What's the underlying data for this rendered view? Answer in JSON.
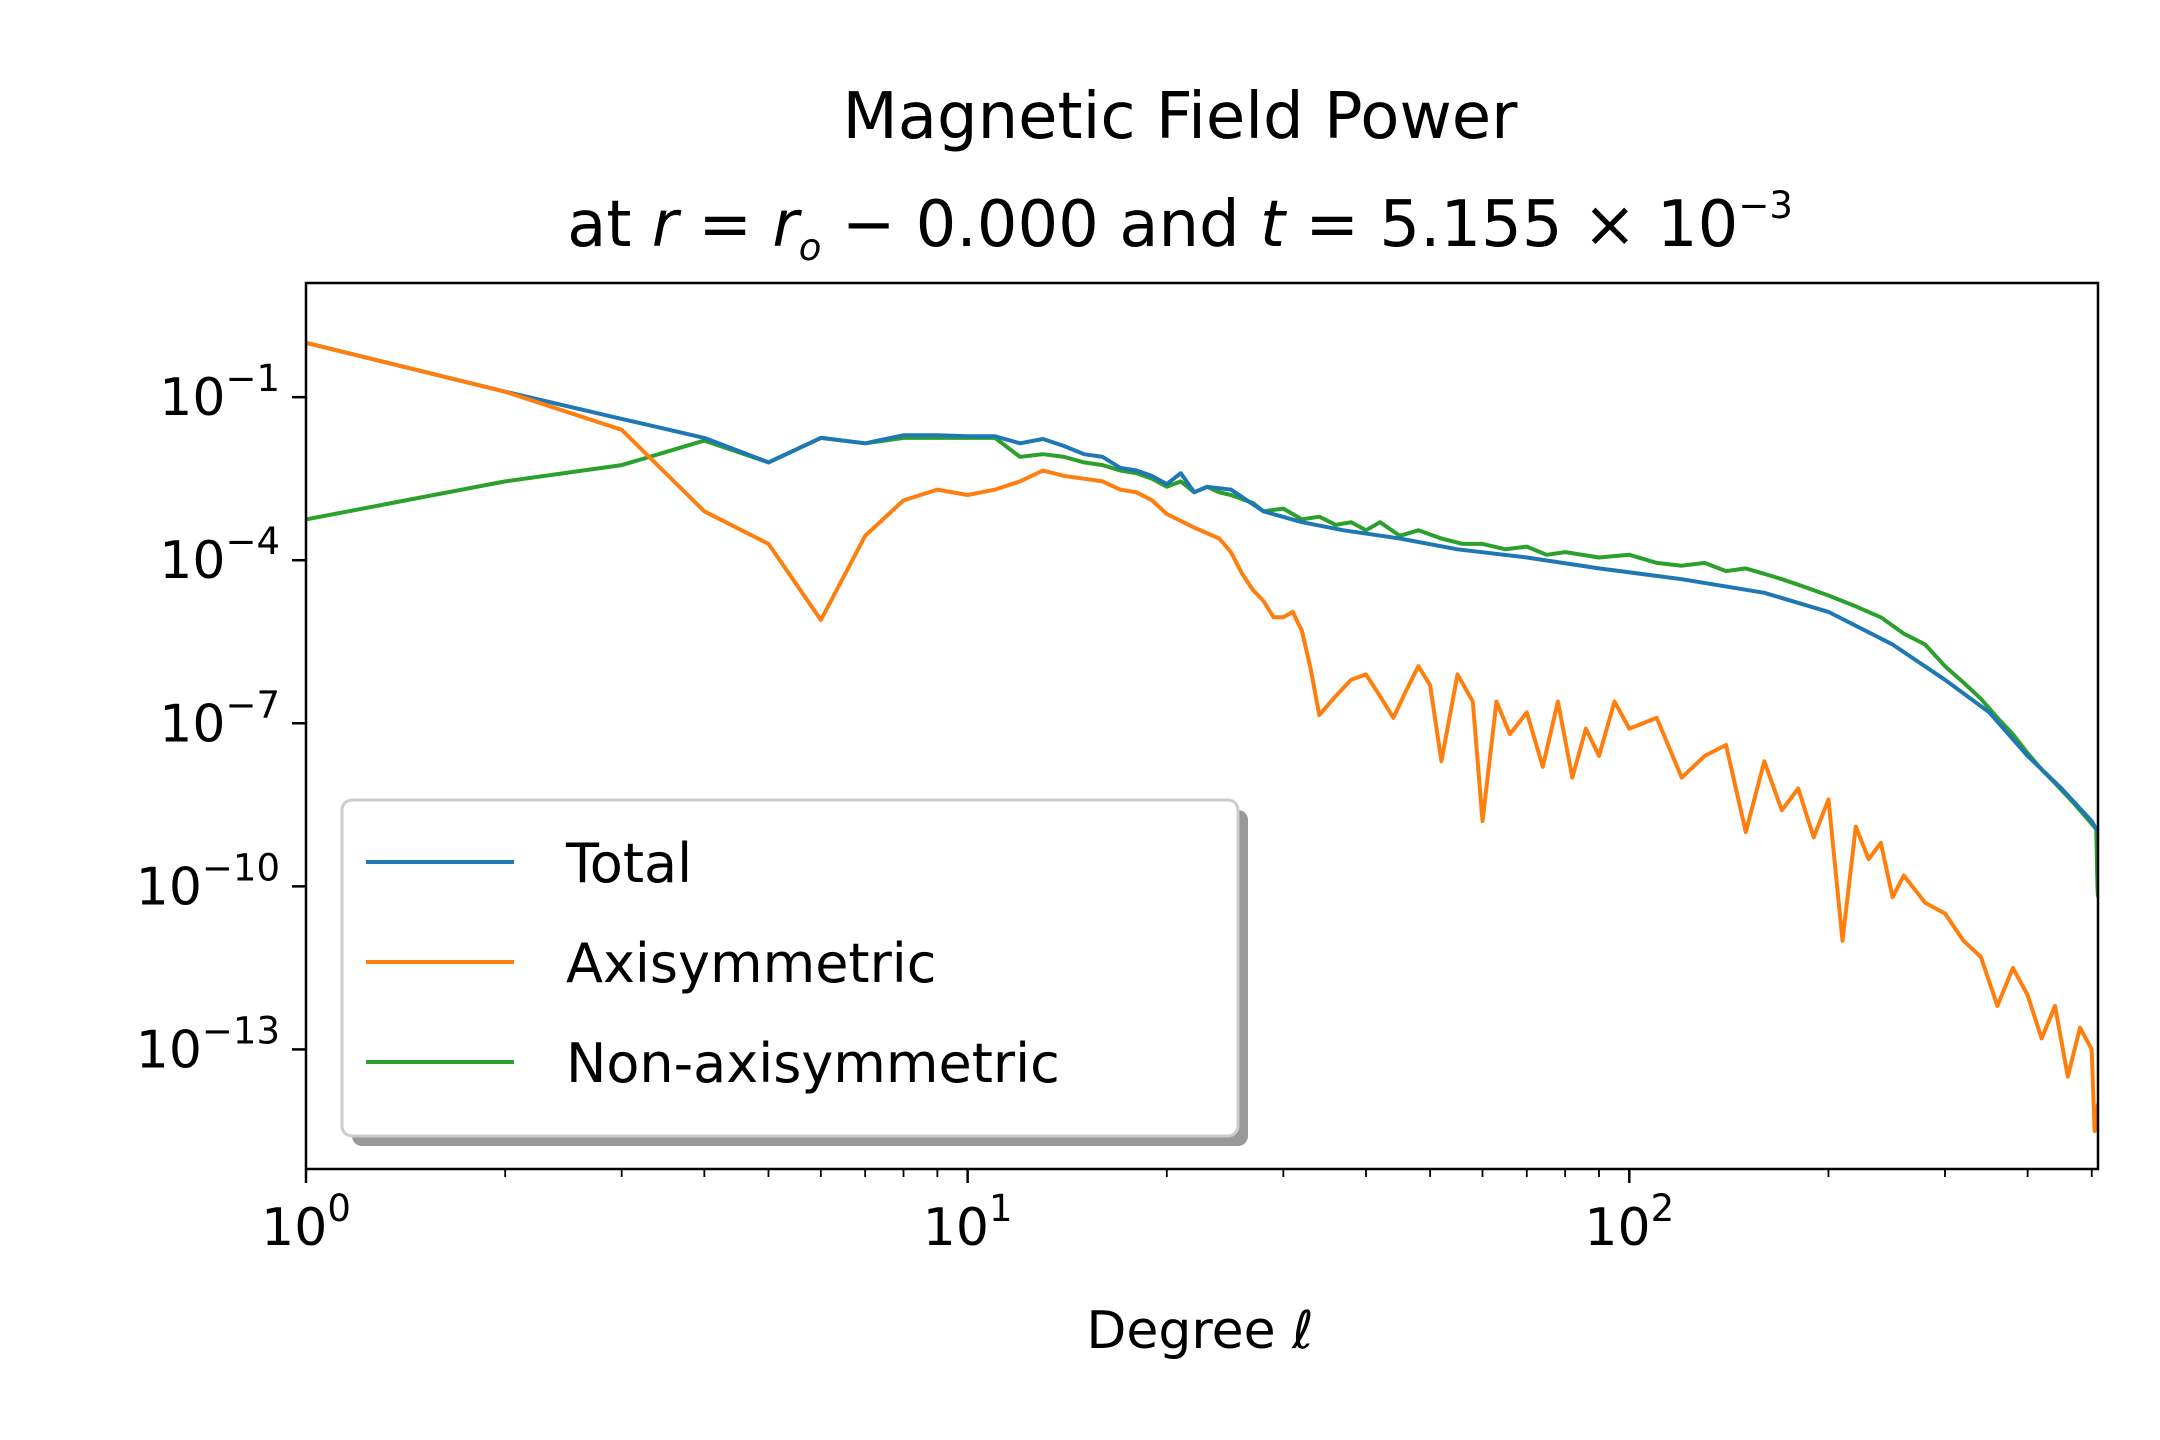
{
  "chart_data": {
    "type": "line",
    "title": "Magnetic Field Power",
    "subtitle": "at r = r_o − 0.000 and t = 5.155 × 10^−3",
    "subtitle_parts": {
      "prefix": "at ",
      "r": "r",
      "eq1": " = ",
      "ro_base": "r",
      "ro_sub": "o",
      "minus": " −  ",
      "r_value": "0.000",
      "and": " and ",
      "t": "t",
      "eq2": " = ",
      "t_value": "5.155 × 10",
      "t_exponent": "−3"
    },
    "xlabel": "Degree ℓ",
    "ylabel": "",
    "xscale": "log",
    "yscale": "log",
    "xlim": [
      1,
      511
    ],
    "ylim_log10": [
      -15.2,
      1.1
    ],
    "grid": false,
    "legend_position": "lower-left",
    "x_ticks": [
      {
        "base": "10",
        "exp": "0",
        "value": 1
      },
      {
        "base": "10",
        "exp": "1",
        "value": 10
      },
      {
        "base": "10",
        "exp": "2",
        "value": 100
      }
    ],
    "y_ticks": [
      {
        "base": "10",
        "exp": "−1",
        "value": -1
      },
      {
        "base": "10",
        "exp": "−4",
        "value": -4
      },
      {
        "base": "10",
        "exp": "−7",
        "value": -7
      },
      {
        "base": "10",
        "exp": "−10",
        "value": -10
      },
      {
        "base": "10",
        "exp": "−13",
        "value": -13
      }
    ],
    "series": [
      {
        "name": "Total",
        "color": "#1f77b4",
        "points_log10": [
          [
            1,
            0.0
          ],
          [
            2,
            -0.9
          ],
          [
            3,
            -1.4
          ],
          [
            4,
            -1.75
          ],
          [
            5,
            -2.2
          ],
          [
            6,
            -1.75
          ],
          [
            7,
            -1.85
          ],
          [
            8,
            -1.7
          ],
          [
            9,
            -1.7
          ],
          [
            10,
            -1.72
          ],
          [
            11,
            -1.72
          ],
          [
            12,
            -1.85
          ],
          [
            13,
            -1.77
          ],
          [
            14,
            -1.9
          ],
          [
            15,
            -2.05
          ],
          [
            16,
            -2.1
          ],
          [
            17,
            -2.3
          ],
          [
            18,
            -2.35
          ],
          [
            19,
            -2.45
          ],
          [
            20,
            -2.6
          ],
          [
            21,
            -2.4
          ],
          [
            22,
            -2.75
          ],
          [
            23,
            -2.65
          ],
          [
            25,
            -2.7
          ],
          [
            28,
            -3.1
          ],
          [
            32,
            -3.3
          ],
          [
            37,
            -3.45
          ],
          [
            45,
            -3.6
          ],
          [
            55,
            -3.8
          ],
          [
            70,
            -3.95
          ],
          [
            90,
            -4.15
          ],
          [
            120,
            -4.35
          ],
          [
            160,
            -4.6
          ],
          [
            200,
            -4.95
          ],
          [
            250,
            -5.55
          ],
          [
            300,
            -6.2
          ],
          [
            350,
            -6.8
          ],
          [
            400,
            -7.6
          ],
          [
            450,
            -8.2
          ],
          [
            500,
            -8.8
          ],
          [
            511,
            -9.0
          ]
        ]
      },
      {
        "name": "Axisymmetric",
        "color": "#ff7f0e",
        "points_log10": [
          [
            1,
            0.0
          ],
          [
            2,
            -0.9
          ],
          [
            3,
            -1.6
          ],
          [
            4,
            -3.1
          ],
          [
            5,
            -3.7
          ],
          [
            6,
            -5.1
          ],
          [
            7,
            -3.55
          ],
          [
            8,
            -2.9
          ],
          [
            9,
            -2.7
          ],
          [
            10,
            -2.8
          ],
          [
            11,
            -2.7
          ],
          [
            12,
            -2.55
          ],
          [
            13,
            -2.35
          ],
          [
            14,
            -2.45
          ],
          [
            15,
            -2.5
          ],
          [
            16,
            -2.55
          ],
          [
            17,
            -2.7
          ],
          [
            18,
            -2.75
          ],
          [
            19,
            -2.9
          ],
          [
            20,
            -3.15
          ],
          [
            22,
            -3.4
          ],
          [
            24,
            -3.6
          ],
          [
            25,
            -3.85
          ],
          [
            26,
            -4.25
          ],
          [
            27,
            -4.55
          ],
          [
            28,
            -4.75
          ],
          [
            29,
            -5.05
          ],
          [
            30,
            -5.05
          ],
          [
            31,
            -4.95
          ],
          [
            32,
            -5.3
          ],
          [
            33,
            -6.0
          ],
          [
            34,
            -6.85
          ],
          [
            36,
            -6.5
          ],
          [
            38,
            -6.2
          ],
          [
            40,
            -6.1
          ],
          [
            42,
            -6.5
          ],
          [
            44,
            -6.9
          ],
          [
            46,
            -6.4
          ],
          [
            48,
            -5.95
          ],
          [
            50,
            -6.3
          ],
          [
            52,
            -7.7
          ],
          [
            55,
            -6.1
          ],
          [
            58,
            -6.6
          ],
          [
            60,
            -8.8
          ],
          [
            63,
            -6.6
          ],
          [
            66,
            -7.2
          ],
          [
            70,
            -6.8
          ],
          [
            74,
            -7.8
          ],
          [
            78,
            -6.6
          ],
          [
            82,
            -8.0
          ],
          [
            86,
            -7.1
          ],
          [
            90,
            -7.6
          ],
          [
            95,
            -6.6
          ],
          [
            100,
            -7.1
          ],
          [
            110,
            -6.9
          ],
          [
            120,
            -8.0
          ],
          [
            130,
            -7.6
          ],
          [
            140,
            -7.4
          ],
          [
            150,
            -9.0
          ],
          [
            160,
            -7.7
          ],
          [
            170,
            -8.6
          ],
          [
            180,
            -8.2
          ],
          [
            190,
            -9.1
          ],
          [
            200,
            -8.4
          ],
          [
            210,
            -11.0
          ],
          [
            220,
            -8.9
          ],
          [
            230,
            -9.5
          ],
          [
            240,
            -9.2
          ],
          [
            250,
            -10.2
          ],
          [
            260,
            -9.8
          ],
          [
            280,
            -10.3
          ],
          [
            300,
            -10.5
          ],
          [
            320,
            -11.0
          ],
          [
            340,
            -11.3
          ],
          [
            360,
            -12.2
          ],
          [
            380,
            -11.5
          ],
          [
            400,
            -12.0
          ],
          [
            420,
            -12.8
          ],
          [
            440,
            -12.2
          ],
          [
            460,
            -13.5
          ],
          [
            480,
            -12.6
          ],
          [
            500,
            -13.0
          ],
          [
            505,
            -14.5
          ],
          [
            511,
            -14.0
          ]
        ]
      },
      {
        "name": "Non-axisymmetric",
        "color": "#2ca02c",
        "points_log10": [
          [
            1,
            -3.25
          ],
          [
            2,
            -2.55
          ],
          [
            3,
            -2.25
          ],
          [
            4,
            -1.8
          ],
          [
            5,
            -2.2
          ],
          [
            6,
            -1.75
          ],
          [
            7,
            -1.85
          ],
          [
            8,
            -1.75
          ],
          [
            9,
            -1.75
          ],
          [
            10,
            -1.75
          ],
          [
            11,
            -1.75
          ],
          [
            12,
            -2.1
          ],
          [
            13,
            -2.05
          ],
          [
            14,
            -2.1
          ],
          [
            15,
            -2.2
          ],
          [
            16,
            -2.25
          ],
          [
            17,
            -2.35
          ],
          [
            18,
            -2.4
          ],
          [
            19,
            -2.5
          ],
          [
            20,
            -2.65
          ],
          [
            21,
            -2.55
          ],
          [
            22,
            -2.75
          ],
          [
            23,
            -2.65
          ],
          [
            24,
            -2.75
          ],
          [
            25,
            -2.8
          ],
          [
            27,
            -2.95
          ],
          [
            28,
            -3.1
          ],
          [
            30,
            -3.05
          ],
          [
            32,
            -3.25
          ],
          [
            34,
            -3.2
          ],
          [
            36,
            -3.35
          ],
          [
            38,
            -3.3
          ],
          [
            40,
            -3.45
          ],
          [
            42,
            -3.3
          ],
          [
            45,
            -3.55
          ],
          [
            48,
            -3.45
          ],
          [
            52,
            -3.6
          ],
          [
            56,
            -3.7
          ],
          [
            60,
            -3.7
          ],
          [
            65,
            -3.8
          ],
          [
            70,
            -3.75
          ],
          [
            75,
            -3.9
          ],
          [
            80,
            -3.85
          ],
          [
            90,
            -3.95
          ],
          [
            100,
            -3.9
          ],
          [
            110,
            -4.05
          ],
          [
            120,
            -4.1
          ],
          [
            130,
            -4.05
          ],
          [
            140,
            -4.2
          ],
          [
            150,
            -4.15
          ],
          [
            160,
            -4.25
          ],
          [
            170,
            -4.35
          ],
          [
            180,
            -4.45
          ],
          [
            200,
            -4.65
          ],
          [
            220,
            -4.85
          ],
          [
            240,
            -5.05
          ],
          [
            260,
            -5.35
          ],
          [
            280,
            -5.55
          ],
          [
            300,
            -5.95
          ],
          [
            320,
            -6.25
          ],
          [
            340,
            -6.55
          ],
          [
            360,
            -6.9
          ],
          [
            380,
            -7.2
          ],
          [
            400,
            -7.55
          ],
          [
            420,
            -7.85
          ],
          [
            440,
            -8.1
          ],
          [
            460,
            -8.35
          ],
          [
            480,
            -8.6
          ],
          [
            500,
            -8.85
          ],
          [
            508,
            -8.95
          ],
          [
            510,
            -10.0
          ],
          [
            511,
            -10.2
          ]
        ]
      }
    ]
  }
}
